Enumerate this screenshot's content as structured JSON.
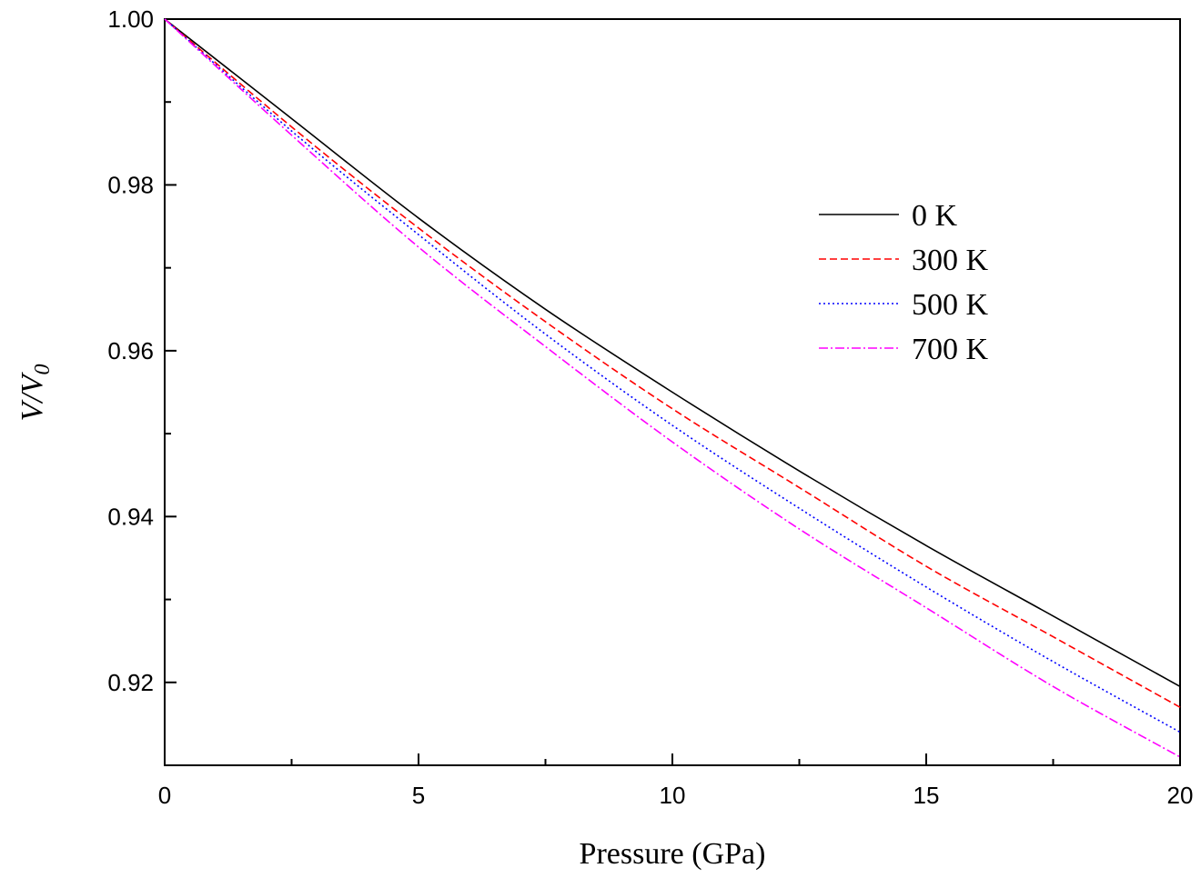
{
  "chart_data": {
    "type": "line",
    "title": "",
    "xlabel": "Pressure (GPa)",
    "ylabel_main": "V/V",
    "ylabel_sub": "0",
    "xlim": [
      0,
      20
    ],
    "ylim": [
      0.91,
      1.0
    ],
    "x_ticks_major": [
      0,
      5,
      10,
      15,
      20
    ],
    "x_tick_labels": [
      "0",
      "5",
      "10",
      "15",
      "20"
    ],
    "x_ticks_minor": [
      2.5,
      7.5,
      12.5,
      17.5
    ],
    "y_ticks_major": [
      0.92,
      0.94,
      0.96,
      0.98,
      1.0
    ],
    "y_tick_labels": [
      "0.92",
      "0.94",
      "0.96",
      "0.98",
      "1.00"
    ],
    "y_ticks_minor": [
      0.91,
      0.93,
      0.95,
      0.97,
      0.99
    ],
    "grid": false,
    "legend_position": "upper-right",
    "x": [
      0,
      2.5,
      5,
      7.5,
      10,
      12.5,
      15,
      17.5,
      20
    ],
    "series": [
      {
        "name": "0 K",
        "color": "#000000",
        "dash": "solid",
        "values": [
          1.0,
          0.988,
          0.976,
          0.965,
          0.955,
          0.9455,
          0.9365,
          0.928,
          0.9195
        ]
      },
      {
        "name": "300 K",
        "color": "#ff0000",
        "dash": "dashed",
        "values": [
          1.0,
          0.987,
          0.9748,
          0.9635,
          0.953,
          0.9435,
          0.934,
          0.9255,
          0.917
        ]
      },
      {
        "name": "500 K",
        "color": "#0000ff",
        "dash": "dotted",
        "values": [
          1.0,
          0.9865,
          0.974,
          0.962,
          0.951,
          0.941,
          0.9315,
          0.9225,
          0.914
        ]
      },
      {
        "name": "700 K",
        "color": "#ff00ff",
        "dash": "dash-dot",
        "values": [
          1.0,
          0.986,
          0.9725,
          0.9605,
          0.949,
          0.9385,
          0.929,
          0.9195,
          0.911
        ]
      }
    ]
  }
}
